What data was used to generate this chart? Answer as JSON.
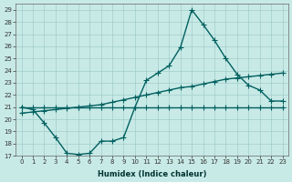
{
  "xlabel": "Humidex (Indice chaleur)",
  "bg_color": "#c8eae6",
  "grid_color": "#a0cccc",
  "line_color": "#006060",
  "xlim": [
    -0.5,
    23.5
  ],
  "ylim": [
    17,
    29.5
  ],
  "xticks": [
    0,
    1,
    2,
    3,
    4,
    5,
    6,
    7,
    8,
    9,
    10,
    11,
    12,
    13,
    14,
    15,
    16,
    17,
    18,
    19,
    20,
    21,
    22,
    23
  ],
  "yticks": [
    17,
    18,
    19,
    20,
    21,
    22,
    23,
    24,
    25,
    26,
    27,
    28,
    29
  ],
  "line1_x": [
    0,
    1,
    2,
    3,
    4,
    5,
    6,
    7,
    8,
    9,
    10,
    11,
    12,
    13,
    14,
    15,
    16,
    17,
    18,
    19,
    20,
    21,
    22,
    23
  ],
  "line1_y": [
    21.0,
    21.0,
    21.0,
    21.0,
    21.0,
    21.0,
    21.0,
    21.0,
    21.0,
    21.0,
    21.0,
    21.0,
    21.0,
    21.0,
    21.0,
    21.0,
    21.0,
    21.0,
    21.0,
    21.0,
    21.0,
    21.0,
    21.0,
    21.0
  ],
  "line2_x": [
    0,
    1,
    2,
    3,
    4,
    5,
    6,
    7,
    8,
    9,
    10,
    11,
    12,
    13,
    14,
    15,
    16,
    17,
    18,
    19,
    20,
    21,
    22,
    23
  ],
  "line2_y": [
    20.5,
    20.6,
    20.7,
    20.8,
    20.9,
    21.0,
    21.1,
    21.2,
    21.4,
    21.6,
    21.8,
    22.0,
    22.2,
    22.4,
    22.6,
    22.7,
    22.9,
    23.1,
    23.3,
    23.4,
    23.5,
    23.6,
    23.7,
    23.8
  ],
  "line3_x": [
    0,
    1,
    2,
    3,
    4,
    5,
    6,
    7,
    8,
    9,
    10,
    11,
    12,
    13,
    14,
    15,
    16,
    17,
    18,
    19,
    20,
    21,
    22,
    23
  ],
  "line3_y": [
    21.0,
    20.8,
    19.7,
    18.5,
    17.2,
    17.1,
    17.2,
    18.2,
    18.2,
    18.5,
    21.0,
    23.2,
    23.8,
    24.4,
    25.9,
    29.0,
    27.8,
    26.5,
    25.0,
    23.7,
    22.8,
    22.4,
    21.5,
    21.5
  ],
  "marker_size": 4,
  "line_width": 1.0,
  "xlabel_fontsize": 6,
  "tick_fontsize": 5
}
